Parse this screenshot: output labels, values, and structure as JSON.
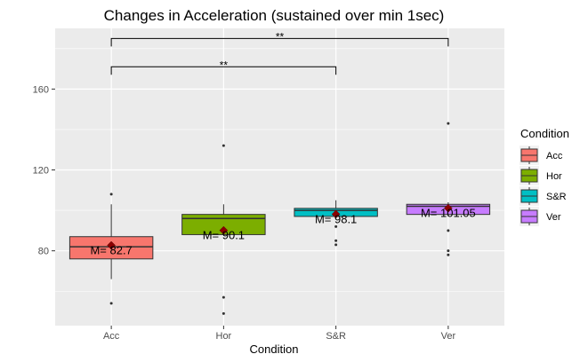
{
  "chart_data": {
    "type": "box",
    "title": "Changes in Acceleration (sustained over min 1sec)",
    "xlabel": "Condition",
    "ylabel": "",
    "categories": [
      "Acc",
      "Hor",
      "S&R",
      "Ver"
    ],
    "ylim": [
      43,
      190
    ],
    "y_ticks": [
      80,
      120,
      160
    ],
    "grid": true,
    "legend": {
      "title": "Condition",
      "position": "right"
    },
    "series": [
      {
        "name": "Acc",
        "color": "#F8766D",
        "whisker_low": 66,
        "q1": 76,
        "median": 82,
        "q3": 87,
        "whisker_high": 103,
        "mean": 82.7,
        "mean_label": "M= 82.7",
        "outliers": [
          108,
          54
        ]
      },
      {
        "name": "Hor",
        "color": "#7CAE00",
        "whisker_low": 88,
        "q1": 88,
        "median": 96,
        "q3": 98,
        "whisker_high": 103,
        "mean": 90.1,
        "mean_label": "M= 90.1",
        "outliers": [
          132,
          57,
          49
        ]
      },
      {
        "name": "S&R",
        "color": "#00BFC4",
        "whisker_low": 96,
        "q1": 97,
        "median": 100,
        "q3": 101,
        "whisker_high": 105,
        "mean": 98.1,
        "mean_label": "M= 98.1",
        "outliers": [
          92,
          85,
          83
        ]
      },
      {
        "name": "Ver",
        "color": "#C77CFF",
        "whisker_low": 97,
        "q1": 98,
        "median": 102,
        "q3": 103,
        "whisker_high": 104,
        "mean": 101.05,
        "mean_label": "M= 101.05",
        "outliers": [
          143,
          90,
          80,
          78
        ]
      }
    ],
    "mean_marker_color": "#8B0000",
    "significance": [
      {
        "from": "Acc",
        "to": "Ver",
        "label": "**",
        "y": 185
      },
      {
        "from": "Acc",
        "to": "S&R",
        "label": "**",
        "y": 171
      }
    ]
  }
}
